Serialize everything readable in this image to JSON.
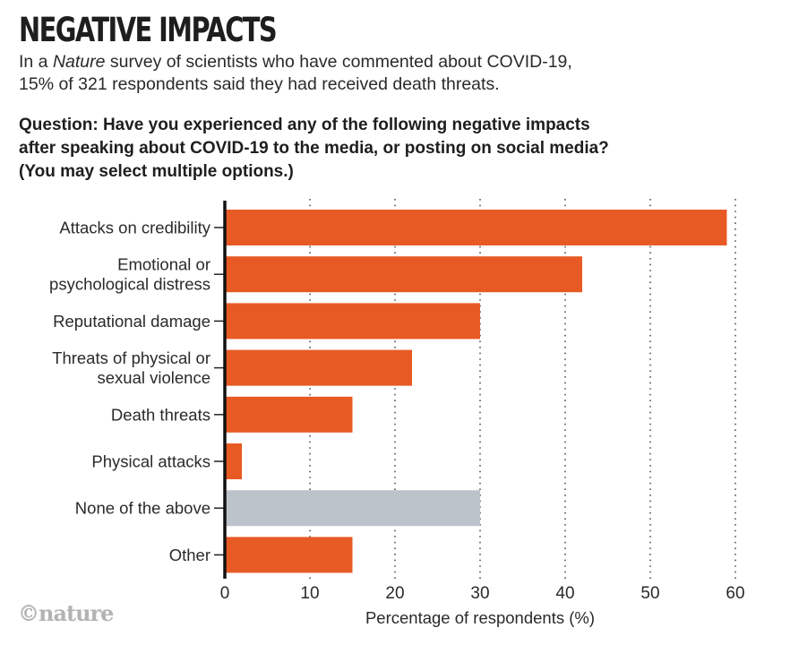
{
  "header": {
    "title": "NEGATIVE IMPACTS",
    "subtitle_line1_pre": "In a ",
    "subtitle_line1_em": "Nature",
    "subtitle_line1_post": " survey of scientists who have commented about COVID-19,",
    "subtitle_line2": "15% of 321 respondents said they had received death threats.",
    "question_lines": [
      "Question: Have you experienced any of the following negative impacts",
      "after speaking about COVID-19 to the media, or posting on social media?",
      "(You may select multiple options.)"
    ]
  },
  "footer": {
    "logo": "©nature"
  },
  "colors": {
    "primary_bar": "#E85A24",
    "none_bar": "#BDC3CB",
    "axis": "#111111",
    "grid": "#555555"
  },
  "chart_data": {
    "type": "bar",
    "orientation": "horizontal",
    "title": "NEGATIVE IMPACTS",
    "xlabel": "Percentage of respondents (%)",
    "ylabel": "",
    "xlim": [
      0,
      60
    ],
    "xticks": [
      0,
      10,
      20,
      30,
      40,
      50,
      60
    ],
    "grid": "vertical dotted",
    "categories": [
      [
        "Attacks on credibility"
      ],
      [
        "Emotional or",
        "psychological distress"
      ],
      [
        "Reputational damage"
      ],
      [
        "Threats of physical or",
        "sexual violence"
      ],
      [
        "Death threats"
      ],
      [
        "Physical attacks"
      ],
      [
        "None of the above"
      ],
      [
        "Other"
      ]
    ],
    "values": [
      59,
      42,
      30,
      22,
      15,
      2,
      30,
      15
    ],
    "highlight": [
      "primary",
      "primary",
      "primary",
      "primary",
      "primary",
      "primary",
      "none",
      "primary"
    ]
  }
}
